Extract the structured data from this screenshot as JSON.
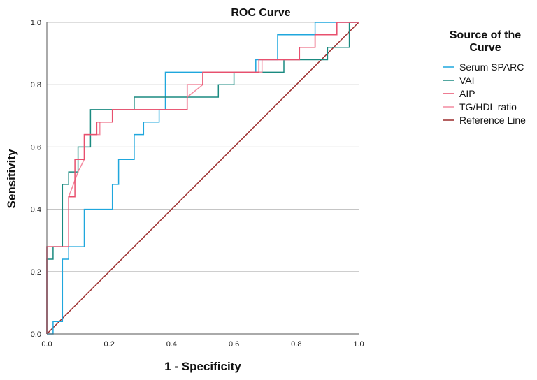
{
  "chart_data": {
    "type": "line",
    "title": "ROC Curve",
    "xlabel": "1 - Specificity",
    "ylabel": "Sensitivity",
    "xlim": [
      0,
      1
    ],
    "ylim": [
      0,
      1
    ],
    "x_ticks": [
      "0.0",
      "0.2",
      "0.4",
      "0.6",
      "0.8",
      "1.0"
    ],
    "y_ticks": [
      "0.0",
      "0.2",
      "0.4",
      "0.6",
      "0.8",
      "1.0"
    ],
    "grid": "horizontal",
    "legend": {
      "title_line1": "Source of the",
      "title_line2": "Curve",
      "placement": "right"
    },
    "series": [
      {
        "name": "Serum SPARC",
        "color": "#1fa7dd",
        "x": [
          0.0,
          0.02,
          0.02,
          0.05,
          0.05,
          0.07,
          0.07,
          0.12,
          0.12,
          0.21,
          0.21,
          0.23,
          0.23,
          0.28,
          0.28,
          0.31,
          0.31,
          0.36,
          0.36,
          0.38,
          0.38,
          0.67,
          0.67,
          0.74,
          0.74,
          0.86,
          0.86,
          1.0
        ],
        "y": [
          0.0,
          0.0,
          0.04,
          0.04,
          0.24,
          0.24,
          0.28,
          0.28,
          0.4,
          0.4,
          0.48,
          0.48,
          0.56,
          0.56,
          0.64,
          0.64,
          0.68,
          0.68,
          0.72,
          0.72,
          0.84,
          0.84,
          0.88,
          0.88,
          0.96,
          0.96,
          1.0,
          1.0
        ]
      },
      {
        "name": "VAI",
        "color": "#1a8a80",
        "x": [
          0.0,
          0.0,
          0.02,
          0.02,
          0.05,
          0.05,
          0.07,
          0.07,
          0.1,
          0.1,
          0.14,
          0.14,
          0.28,
          0.28,
          0.55,
          0.55,
          0.6,
          0.6,
          0.76,
          0.76,
          0.9,
          0.9,
          0.97,
          0.97,
          1.0
        ],
        "y": [
          0.0,
          0.24,
          0.24,
          0.28,
          0.28,
          0.48,
          0.48,
          0.52,
          0.52,
          0.6,
          0.6,
          0.72,
          0.72,
          0.76,
          0.76,
          0.8,
          0.8,
          0.84,
          0.84,
          0.88,
          0.88,
          0.92,
          0.92,
          1.0,
          1.0
        ]
      },
      {
        "name": "AIP",
        "color": "#e8506e",
        "x": [
          0.0,
          0.0,
          0.07,
          0.07,
          0.09,
          0.09,
          0.12,
          0.12,
          0.16,
          0.16,
          0.21,
          0.21,
          0.45,
          0.45,
          0.5,
          0.5,
          0.68,
          0.68,
          0.81,
          0.81,
          0.86,
          0.86,
          0.93,
          0.93,
          1.0
        ],
        "y": [
          0.0,
          0.28,
          0.28,
          0.44,
          0.44,
          0.56,
          0.56,
          0.64,
          0.64,
          0.68,
          0.68,
          0.72,
          0.72,
          0.8,
          0.8,
          0.84,
          0.84,
          0.88,
          0.88,
          0.92,
          0.92,
          0.96,
          0.96,
          1.0,
          1.0
        ]
      },
      {
        "name": "TG/HDL ratio",
        "color": "#f48ba0",
        "x": [
          0.0,
          0.0,
          0.07,
          0.07,
          0.1,
          0.12,
          0.12,
          0.17,
          0.17,
          0.21,
          0.21,
          0.45,
          0.45,
          0.5,
          0.5,
          0.69,
          0.69,
          0.81,
          0.81,
          0.86,
          0.86,
          0.93,
          0.93,
          1.0
        ],
        "y": [
          0.0,
          0.28,
          0.28,
          0.44,
          0.52,
          0.56,
          0.64,
          0.64,
          0.68,
          0.68,
          0.72,
          0.72,
          0.76,
          0.8,
          0.84,
          0.84,
          0.88,
          0.88,
          0.92,
          0.92,
          0.96,
          0.96,
          1.0,
          1.0
        ]
      },
      {
        "name": "Reference Line",
        "color": "#9b2b2b",
        "x": [
          0.0,
          1.0
        ],
        "y": [
          0.0,
          1.0
        ]
      }
    ]
  }
}
